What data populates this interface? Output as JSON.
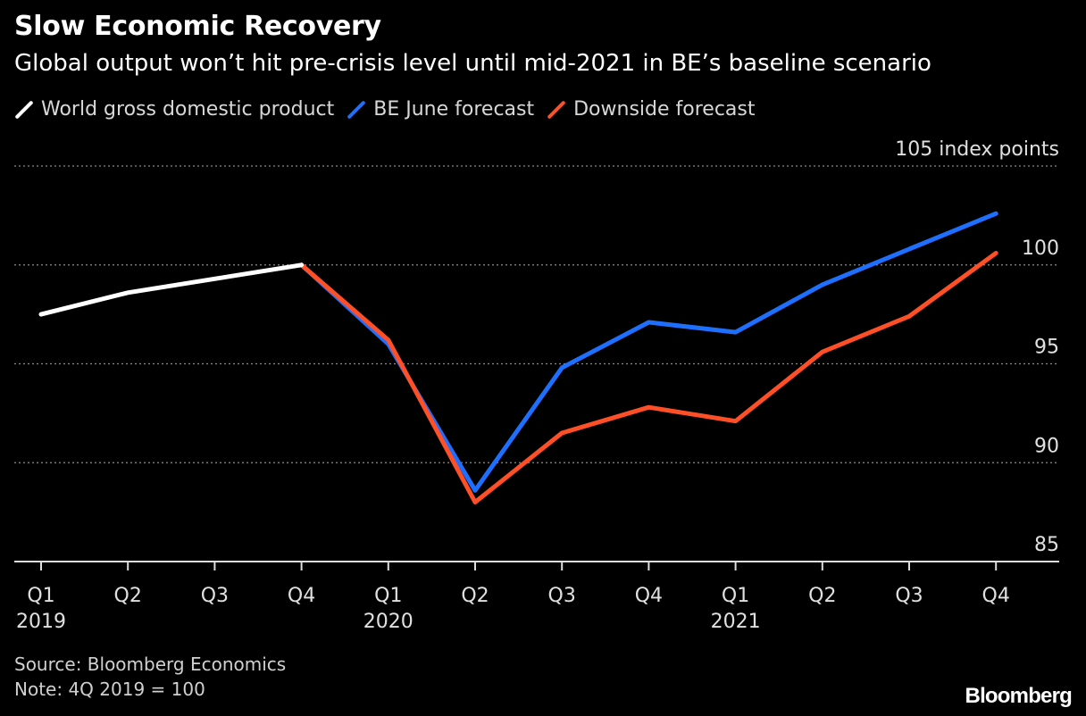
{
  "title": "Slow Economic Recovery",
  "subtitle": "Global output won’t hit pre-crisis level until mid-2021 in BE’s baseline scenario",
  "source": "Source: Bloomberg Economics",
  "note": "Note: 4Q 2019 = 100",
  "brand": "Bloomberg",
  "colors": {
    "world": "#ffffff",
    "june": "#1f6fff",
    "downside": "#ff4f27",
    "grid": "#8a8a8a",
    "axis": "#dddddd"
  },
  "chart_data": {
    "type": "line",
    "categories": [
      "Q1",
      "Q2",
      "Q3",
      "Q4",
      "Q1",
      "Q2",
      "Q3",
      "Q4",
      "Q1",
      "Q2",
      "Q3",
      "Q4"
    ],
    "years": [
      {
        "label": "2019",
        "index": 0
      },
      {
        "label": "2020",
        "index": 4
      },
      {
        "label": "2021",
        "index": 8
      }
    ],
    "series": [
      {
        "name": "World gross domestic product",
        "color": "#ffffff",
        "values": [
          97.5,
          98.6,
          99.3,
          100.0,
          null,
          null,
          null,
          null,
          null,
          null,
          null,
          null
        ]
      },
      {
        "name": "BE June forecast",
        "color": "#1f6fff",
        "values": [
          null,
          null,
          null,
          100.0,
          96.0,
          88.6,
          94.8,
          97.1,
          96.6,
          99.0,
          100.8,
          102.6
        ]
      },
      {
        "name": "Downside forecast",
        "color": "#ff4f27",
        "values": [
          null,
          null,
          null,
          100.0,
          96.2,
          88.0,
          91.5,
          92.8,
          92.1,
          95.6,
          97.4,
          100.6
        ]
      }
    ],
    "ylim": [
      85,
      105
    ],
    "yticks": [
      85,
      90,
      95,
      100,
      105
    ],
    "ytick_labels": [
      "85",
      "90",
      "95",
      "100",
      "105 index points"
    ],
    "grid": true,
    "legend_position": "top-left"
  }
}
